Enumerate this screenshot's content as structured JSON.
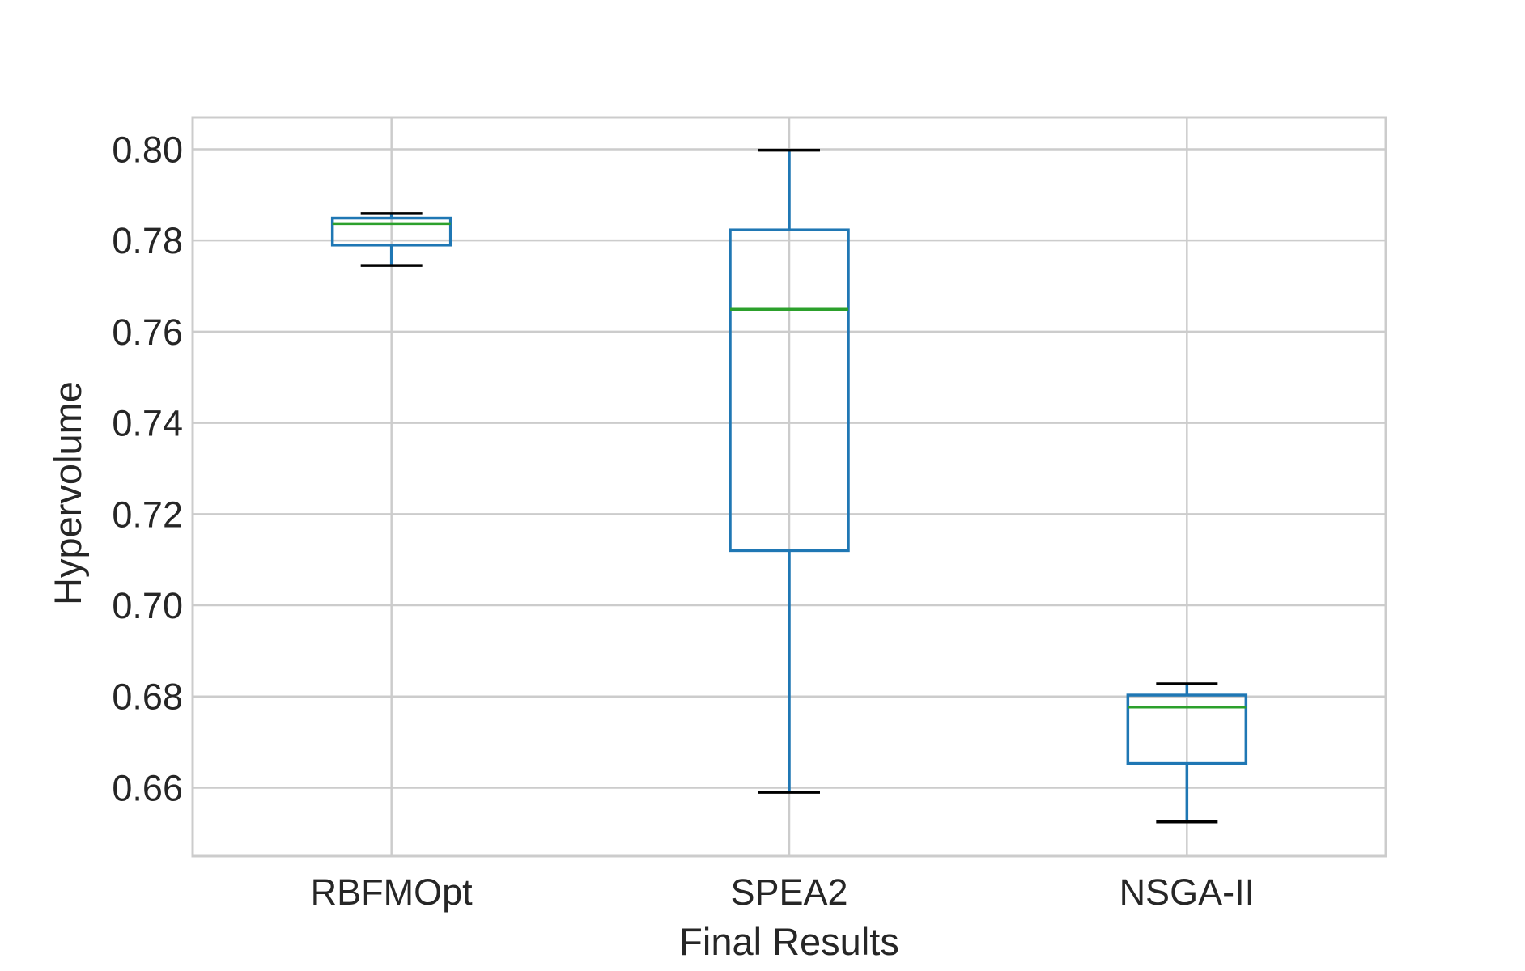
{
  "chart_data": {
    "type": "box",
    "xlabel": "Final Results",
    "ylabel": "Hypervolume",
    "ylim": [
      0.645,
      0.807
    ],
    "yticks": [
      "0.80",
      "0.78",
      "0.76",
      "0.74",
      "0.72",
      "0.70",
      "0.68",
      "0.66"
    ],
    "grid": true,
    "categories": [
      "RBFMOpt",
      "SPEA2",
      "NSGA-II"
    ],
    "boxes": [
      {
        "category": "RBFMOpt",
        "whisker_low": 0.7745,
        "q1": 0.779,
        "median": 0.7837,
        "q3": 0.7849,
        "whisker_high": 0.7859
      },
      {
        "category": "SPEA2",
        "whisker_low": 0.659,
        "q1": 0.712,
        "median": 0.7649,
        "q3": 0.7823,
        "whisker_high": 0.7998
      },
      {
        "category": "NSGA-II",
        "whisker_low": 0.6525,
        "q1": 0.6653,
        "median": 0.6777,
        "q3": 0.6803,
        "whisker_high": 0.6828
      }
    ]
  },
  "colors": {
    "box": "#1f77b4",
    "median": "#2ca02c",
    "whisker_cap": "#000000",
    "grid": "#cccccc",
    "frame": "#cccccc",
    "text": "#262626"
  }
}
